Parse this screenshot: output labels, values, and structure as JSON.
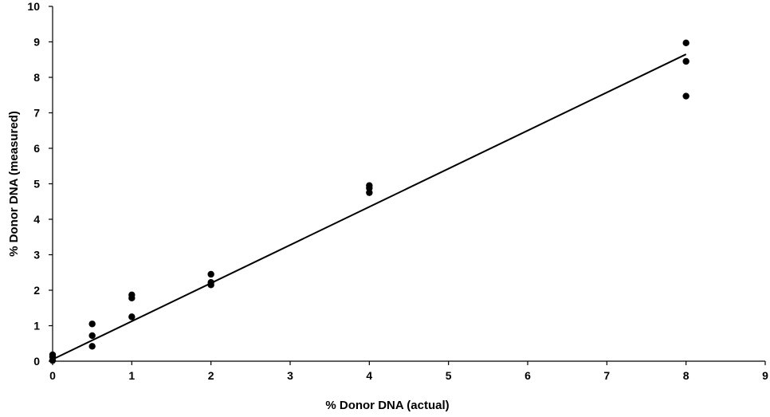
{
  "chart_data": {
    "type": "scatter",
    "title": "",
    "xlabel": "% Donor DNA (actual)",
    "ylabel": "% Donor DNA (measured)",
    "xlim": [
      0,
      9
    ],
    "ylim": [
      0,
      10
    ],
    "x_ticks": [
      "0",
      "1",
      "2",
      "3",
      "4",
      "5",
      "6",
      "7",
      "8",
      "9"
    ],
    "y_ticks": [
      "0",
      "1",
      "2",
      "3",
      "4",
      "5",
      "6",
      "7",
      "8",
      "9",
      "10"
    ],
    "grid": false,
    "legend": "none",
    "colors": {
      "points": "#000000",
      "line": "#000000",
      "axes": "#000000"
    },
    "series": [
      {
        "type": "scatter",
        "points": [
          {
            "x": 0,
            "y": 0.18
          },
          {
            "x": 0,
            "y": 0.12
          },
          {
            "x": 0,
            "y": 0.02
          },
          {
            "x": 0.5,
            "y": 1.05
          },
          {
            "x": 0.5,
            "y": 0.72
          },
          {
            "x": 0.5,
            "y": 0.42
          },
          {
            "x": 1,
            "y": 1.87
          },
          {
            "x": 1,
            "y": 1.78
          },
          {
            "x": 1,
            "y": 1.25
          },
          {
            "x": 2,
            "y": 2.45
          },
          {
            "x": 2,
            "y": 2.22
          },
          {
            "x": 2,
            "y": 2.15
          },
          {
            "x": 4,
            "y": 4.95
          },
          {
            "x": 4,
            "y": 4.88
          },
          {
            "x": 4,
            "y": 4.75
          },
          {
            "x": 8,
            "y": 8.97
          },
          {
            "x": 8,
            "y": 8.45
          },
          {
            "x": 8,
            "y": 7.47
          }
        ]
      },
      {
        "type": "line",
        "points": [
          {
            "x": 0,
            "y": 0.05
          },
          {
            "x": 8,
            "y": 8.65
          }
        ]
      }
    ]
  }
}
